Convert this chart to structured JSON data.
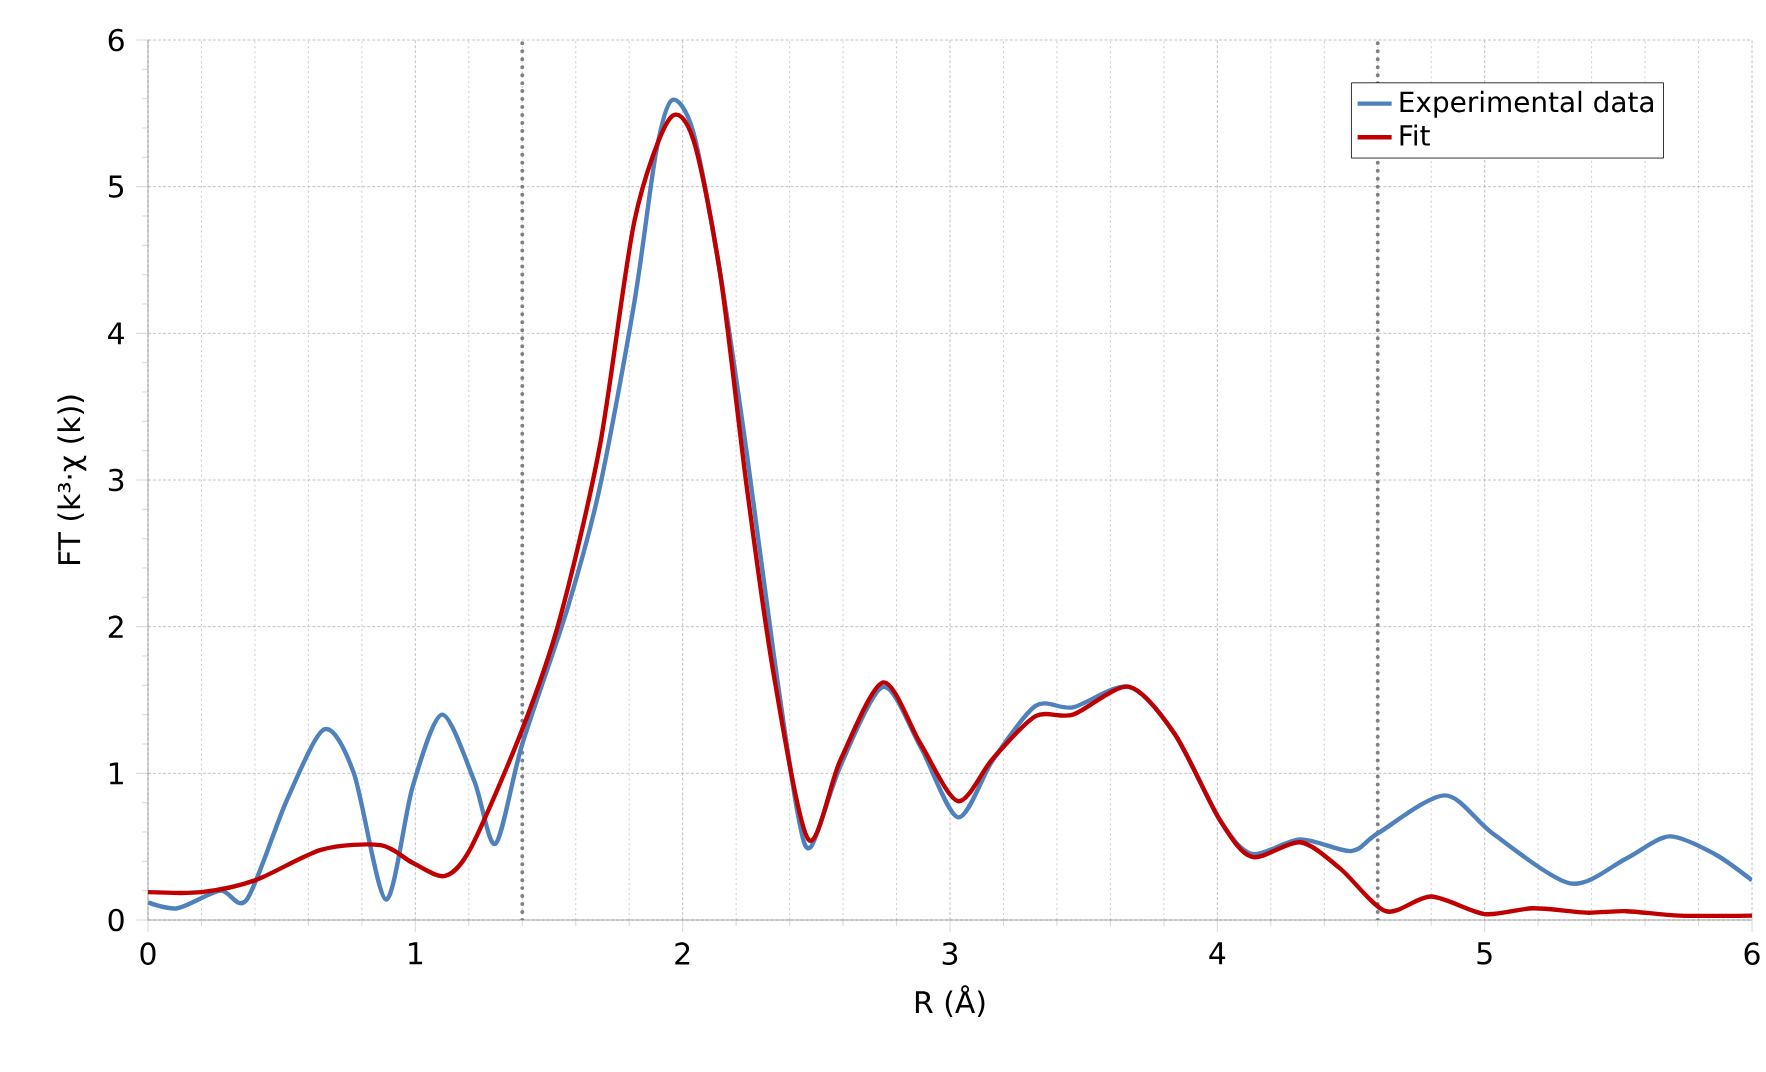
{
  "chart_data": {
    "type": "line",
    "xlabel": "R (Å)",
    "ylabel": "FT (k³·χ (k))",
    "xlim": [
      0,
      6
    ],
    "ylim": [
      0,
      6
    ],
    "xticks": [
      0,
      1,
      2,
      3,
      4,
      5,
      6
    ],
    "yticks": [
      0,
      1,
      2,
      3,
      4,
      5,
      6
    ],
    "grid": true,
    "legend": "top right",
    "line_style": "solid",
    "marker": "none",
    "ref_lines": [
      {
        "axis": "x",
        "value": 1.4,
        "color": "#808080",
        "line_style": "dotted"
      },
      {
        "axis": "x",
        "value": 4.6,
        "color": "#808080",
        "line_style": "dotted"
      }
    ],
    "series": [
      {
        "name": "Experimental data",
        "color": "#4f81bd",
        "x": [
          0,
          0.11,
          0.27,
          0.37,
          0.52,
          0.66,
          0.77,
          0.89,
          0.99,
          1.1,
          1.22,
          1.3,
          1.4,
          1.57,
          1.69,
          1.82,
          1.9,
          1.96,
          2.04,
          2.14,
          2.24,
          2.34,
          2.43,
          2.48,
          2.59,
          2.75,
          2.89,
          3.03,
          3.16,
          3.32,
          3.46,
          3.67,
          3.84,
          4.01,
          4.13,
          4.31,
          4.5,
          4.6,
          4.85,
          5.03,
          5.32,
          5.53,
          5.69,
          5.86,
          6.0
        ],
        "values": [
          0.12,
          0.08,
          0.2,
          0.14,
          0.82,
          1.3,
          1.0,
          0.14,
          0.91,
          1.4,
          0.95,
          0.52,
          1.2,
          2.13,
          2.95,
          4.22,
          5.23,
          5.59,
          5.37,
          4.41,
          3.18,
          1.82,
          0.73,
          0.5,
          1.05,
          1.59,
          1.18,
          0.7,
          1.09,
          1.46,
          1.45,
          1.59,
          1.27,
          0.68,
          0.45,
          0.55,
          0.47,
          0.59,
          0.85,
          0.59,
          0.25,
          0.42,
          0.57,
          0.45,
          0.27
        ]
      },
      {
        "name": "Fit",
        "color": "#c00000",
        "x": [
          0,
          0.2,
          0.4,
          0.65,
          0.87,
          0.99,
          1.11,
          1.21,
          1.4,
          1.54,
          1.69,
          1.82,
          1.95,
          2.04,
          2.14,
          2.24,
          2.34,
          2.47,
          2.59,
          2.75,
          2.89,
          3.03,
          3.16,
          3.32,
          3.46,
          3.67,
          3.84,
          4.01,
          4.13,
          4.31,
          4.46,
          4.63,
          4.8,
          5.0,
          5.18,
          5.38,
          5.53,
          5.73,
          6.0
        ],
        "values": [
          0.19,
          0.19,
          0.27,
          0.48,
          0.51,
          0.39,
          0.3,
          0.5,
          1.3,
          2.05,
          3.23,
          4.77,
          5.46,
          5.32,
          4.41,
          2.95,
          1.68,
          0.55,
          1.09,
          1.62,
          1.2,
          0.81,
          1.1,
          1.39,
          1.4,
          1.59,
          1.27,
          0.68,
          0.43,
          0.53,
          0.35,
          0.06,
          0.16,
          0.04,
          0.08,
          0.05,
          0.06,
          0.03,
          0.03
        ]
      }
    ]
  }
}
